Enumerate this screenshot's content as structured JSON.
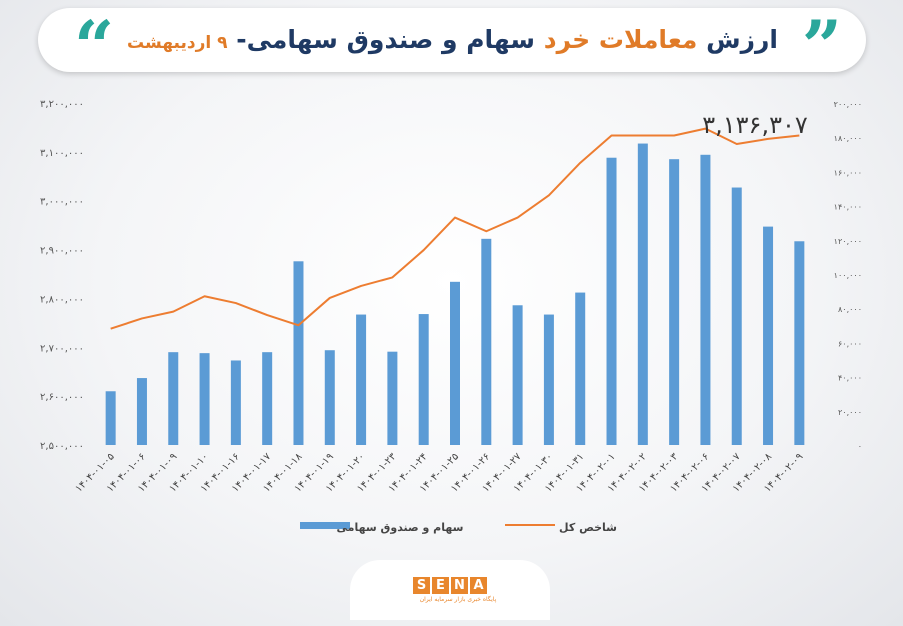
{
  "title": {
    "part1": "ارزش",
    "part2": "معاملات خرد",
    "part3": "سهام و صندوق سهامی-",
    "part4": "۹ اردیبهشت"
  },
  "highlight_label": "۳,۱۳۶,۳۰۷",
  "logo": {
    "letters": [
      "S",
      "E",
      "N",
      "A"
    ],
    "subtitle": "پایگاه خبری بازار سرمایه ایران"
  },
  "colors": {
    "bar": "#5b9bd5",
    "line": "#ed7d31",
    "title_dark": "#1f3a64",
    "accent": "#e07b28",
    "quote": "#2aa79b"
  },
  "chart_data": {
    "type": "bar",
    "categories": [
      "۱۴۰۴-۰۱-۰۵",
      "۱۴۰۴-۰۱-۰۶",
      "۱۴۰۴-۰۱-۰۹",
      "۱۴۰۴-۰۱-۱۰",
      "۱۴۰۴-۰۱-۱۶",
      "۱۴۰۴-۰۱-۱۷",
      "۱۴۰۴-۰۱-۱۸",
      "۱۴۰۴-۰۱-۱۹",
      "۱۴۰۴-۰۱-۲۰",
      "۱۴۰۴-۰۱-۲۳",
      "۱۴۰۴-۰۱-۲۴",
      "۱۴۰۴-۰۱-۲۵",
      "۱۴۰۴-۰۱-۲۶",
      "۱۴۰۴-۰۱-۲۷",
      "۱۴۰۴-۰۱-۳۰",
      "۱۴۰۴-۰۱-۳۱",
      "۱۴۰۴-۰۲-۰۱",
      "۱۴۰۴-۰۲-۰۲",
      "۱۴۰۴-۰۲-۰۳",
      "۱۴۰۴-۰۲-۰۶",
      "۱۴۰۴-۰۲-۰۷",
      "۱۴۰۴-۰۲-۰۸",
      "۱۴۰۴-۰۲-۰۹"
    ],
    "series": [
      {
        "name": "سهام و صندوق سهامی",
        "kind": "bar",
        "axis": "left",
        "values": [
          2610000,
          2637000,
          2690000,
          2688000,
          2673000,
          2690000,
          2876000,
          2694000,
          2767000,
          2691000,
          2768000,
          2834000,
          2922000,
          2786000,
          2767000,
          2812000,
          3088000,
          3117000,
          3085000,
          3094000,
          3027000,
          2947000,
          2917000
        ]
      },
      {
        "name": "شاخص کل",
        "kind": "line",
        "axis": "right",
        "values": [
          68000,
          74000,
          78000,
          87000,
          83000,
          76000,
          70000,
          86000,
          93000,
          98000,
          114000,
          133000,
          125000,
          133000,
          146000,
          165000,
          181000,
          181000,
          181000,
          185000,
          176000,
          179000,
          181000
        ]
      }
    ],
    "y_left": {
      "min": 2500000,
      "max": 3200000,
      "ticks": [
        "۲,۵۰۰,۰۰۰",
        "۲,۶۰۰,۰۰۰",
        "۲,۷۰۰,۰۰۰",
        "۲,۸۰۰,۰۰۰",
        "۲,۹۰۰,۰۰۰",
        "۳,۰۰۰,۰۰۰",
        "۳,۱۰۰,۰۰۰",
        "۳,۲۰۰,۰۰۰"
      ]
    },
    "y_right": {
      "min": 0,
      "max": 200000,
      "ticks": [
        "۰",
        "۲۰,۰۰۰",
        "۴۰,۰۰۰",
        "۶۰,۰۰۰",
        "۸۰,۰۰۰",
        "۱۰۰,۰۰۰",
        "۱۲۰,۰۰۰",
        "۱۴۰,۰۰۰",
        "۱۶۰,۰۰۰",
        "۱۸۰,۰۰۰",
        "۲۰۰,۰۰۰"
      ]
    },
    "legend_position": "bottom",
    "grid": false
  }
}
